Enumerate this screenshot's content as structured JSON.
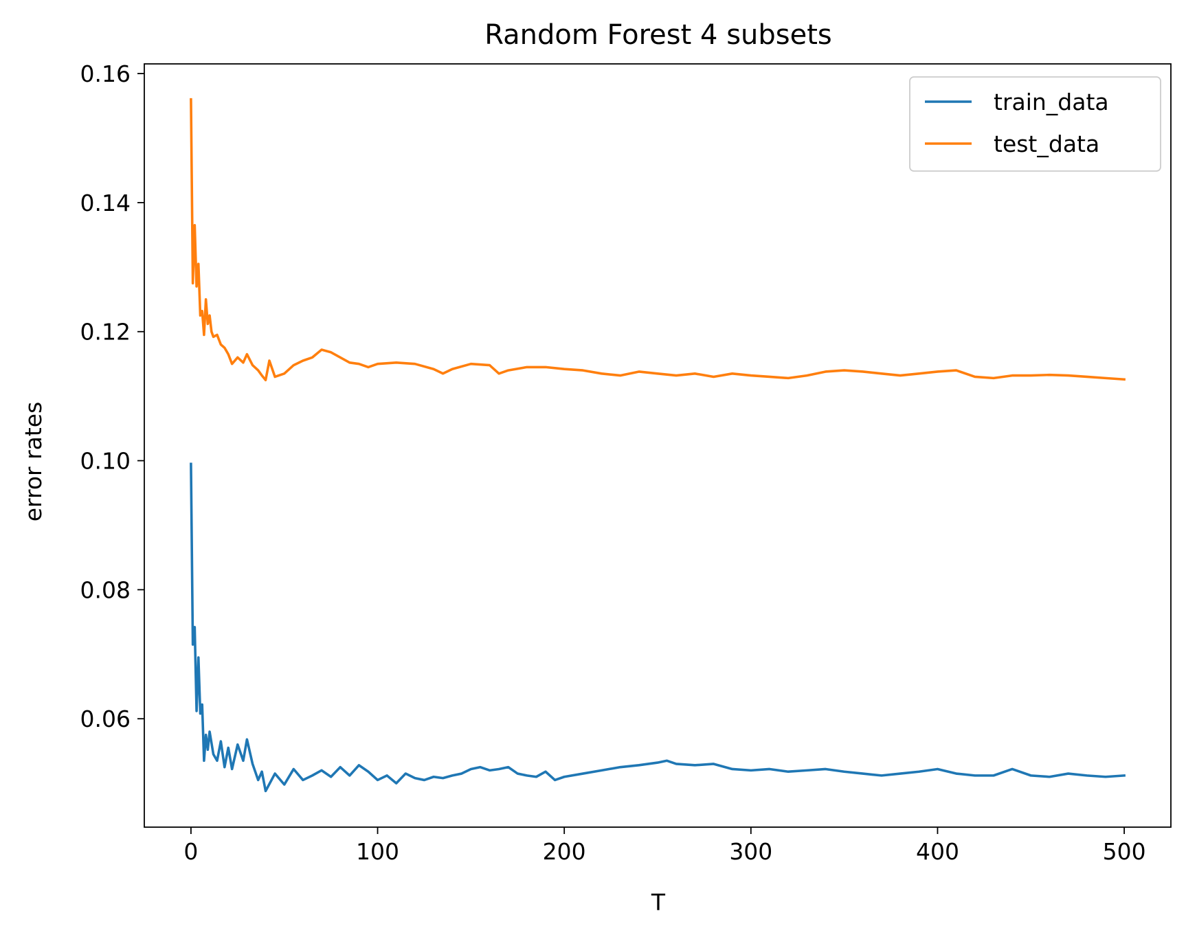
{
  "chart_data": {
    "type": "line",
    "title": "Random Forest 4 subsets",
    "xlabel": "T",
    "ylabel": "error rates",
    "xlim": [
      -25,
      525
    ],
    "ylim": [
      0.0432,
      0.1615
    ],
    "xticks": [
      0,
      100,
      200,
      300,
      400,
      500
    ],
    "xtick_labels": [
      "0",
      "100",
      "200",
      "300",
      "400",
      "500"
    ],
    "yticks": [
      0.06,
      0.08,
      0.1,
      0.12,
      0.14,
      0.16
    ],
    "ytick_labels": [
      "0.06",
      "0.08",
      "0.10",
      "0.12",
      "0.14",
      "0.16"
    ],
    "grid": false,
    "legend_position": "upper-right",
    "series": [
      {
        "name": "train_data",
        "color": "#1f77b4",
        "x": [
          0,
          1,
          2,
          3,
          4,
          5,
          6,
          7,
          8,
          9,
          10,
          12,
          14,
          16,
          18,
          20,
          22,
          25,
          28,
          30,
          33,
          36,
          38,
          40,
          45,
          50,
          55,
          60,
          65,
          70,
          75,
          80,
          85,
          90,
          95,
          100,
          105,
          110,
          115,
          120,
          125,
          130,
          135,
          140,
          145,
          150,
          155,
          160,
          165,
          170,
          175,
          180,
          185,
          190,
          195,
          200,
          210,
          220,
          230,
          240,
          250,
          255,
          260,
          270,
          280,
          290,
          300,
          310,
          320,
          330,
          340,
          350,
          360,
          370,
          380,
          390,
          400,
          410,
          420,
          430,
          440,
          450,
          460,
          470,
          480,
          490,
          500
        ],
        "y": [
          0.0995,
          0.0715,
          0.0742,
          0.0612,
          0.0695,
          0.0608,
          0.0622,
          0.0535,
          0.0575,
          0.0552,
          0.058,
          0.0545,
          0.0535,
          0.0565,
          0.0525,
          0.0555,
          0.0522,
          0.056,
          0.0535,
          0.0568,
          0.053,
          0.0505,
          0.0518,
          0.0488,
          0.0515,
          0.0498,
          0.0522,
          0.0505,
          0.0512,
          0.052,
          0.051,
          0.0525,
          0.0512,
          0.0528,
          0.0518,
          0.0505,
          0.0512,
          0.05,
          0.0515,
          0.0508,
          0.0505,
          0.051,
          0.0508,
          0.0512,
          0.0515,
          0.0522,
          0.0525,
          0.052,
          0.0522,
          0.0525,
          0.0515,
          0.0512,
          0.051,
          0.0518,
          0.0505,
          0.051,
          0.0515,
          0.052,
          0.0525,
          0.0528,
          0.0532,
          0.0535,
          0.053,
          0.0528,
          0.053,
          0.0522,
          0.052,
          0.0522,
          0.0518,
          0.052,
          0.0522,
          0.0518,
          0.0515,
          0.0512,
          0.0515,
          0.0518,
          0.0522,
          0.0515,
          0.0512,
          0.0512,
          0.0522,
          0.0512,
          0.051,
          0.0515,
          0.0512,
          0.051,
          0.0512
        ]
      },
      {
        "name": "test_data",
        "color": "#ff7f0e",
        "x": [
          0,
          1,
          2,
          3,
          4,
          5,
          6,
          7,
          8,
          9,
          10,
          11,
          12,
          14,
          16,
          18,
          20,
          22,
          25,
          28,
          30,
          33,
          36,
          38,
          40,
          42,
          45,
          50,
          55,
          60,
          65,
          70,
          75,
          80,
          85,
          90,
          95,
          100,
          110,
          120,
          130,
          135,
          140,
          150,
          160,
          165,
          170,
          180,
          190,
          200,
          210,
          220,
          230,
          240,
          250,
          260,
          270,
          280,
          290,
          300,
          310,
          320,
          330,
          340,
          350,
          360,
          370,
          380,
          390,
          400,
          410,
          420,
          430,
          440,
          450,
          460,
          470,
          480,
          490,
          500
        ],
        "y": [
          0.156,
          0.1275,
          0.1365,
          0.127,
          0.1305,
          0.1225,
          0.1232,
          0.1195,
          0.125,
          0.1212,
          0.1225,
          0.12,
          0.1192,
          0.1195,
          0.118,
          0.1175,
          0.1165,
          0.115,
          0.116,
          0.1152,
          0.1165,
          0.1148,
          0.114,
          0.1132,
          0.1125,
          0.1155,
          0.113,
          0.1135,
          0.1148,
          0.1155,
          0.116,
          0.1172,
          0.1168,
          0.116,
          0.1152,
          0.115,
          0.1145,
          0.115,
          0.1152,
          0.115,
          0.1142,
          0.1135,
          0.1142,
          0.115,
          0.1148,
          0.1135,
          0.114,
          0.1145,
          0.1145,
          0.1142,
          0.114,
          0.1135,
          0.1132,
          0.1138,
          0.1135,
          0.1132,
          0.1135,
          0.113,
          0.1135,
          0.1132,
          0.113,
          0.1128,
          0.1132,
          0.1138,
          0.114,
          0.1138,
          0.1135,
          0.1132,
          0.1135,
          0.1138,
          0.114,
          0.113,
          0.1128,
          0.1132,
          0.1132,
          0.1133,
          0.1132,
          0.113,
          0.1128,
          0.1126
        ]
      }
    ]
  }
}
